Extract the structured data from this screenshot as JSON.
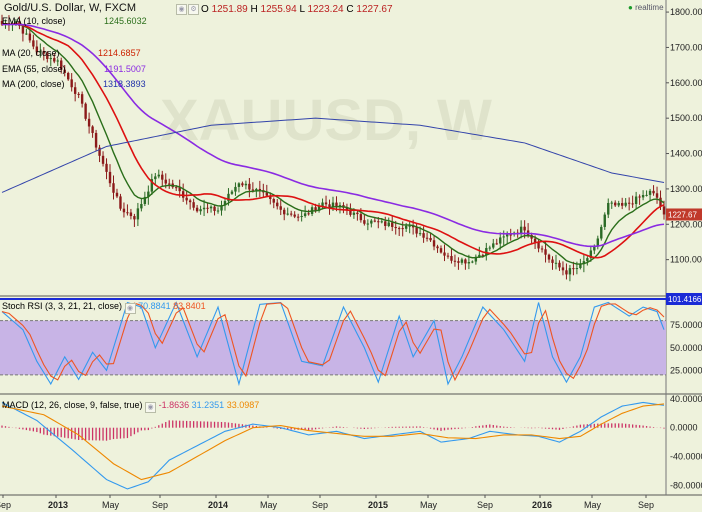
{
  "header": {
    "symbol": "Gold/U.S. Dollar, W, FXCM",
    "o_label": "O",
    "o_val": "1251.89",
    "h_label": "H",
    "h_val": "1255.94",
    "l_label": "L",
    "l_val": "1223.24",
    "c_label": "C",
    "c_val": "1227.67",
    "realtime": "realtime",
    "watermark": "XAUUSD, W"
  },
  "indicators": [
    {
      "label": "EMA (10, close)",
      "value": "1245.6032",
      "color": "#2a6e1a"
    },
    {
      "label": "MA (20, close)",
      "value": "1214.6857",
      "color": "#cc2200"
    },
    {
      "label": "EMA (55, close)",
      "value": "1191.5007",
      "color": "#8a2be2"
    },
    {
      "label": "MA (200, close)",
      "value": "1318.3893",
      "color": "#2233aa"
    }
  ],
  "stoch_header": {
    "label": "Stoch RSI (3, 3, 21, 21, close)",
    "k": "70.8841",
    "d": "83.8401"
  },
  "macd_header": {
    "label": "MACD (12, 26, close, 9, false, true)",
    "hist": "-1.8636",
    "macd": "31.2351",
    "signal": "33.0987"
  },
  "colors": {
    "bg": "#eef2dc",
    "up": "#2b6a26",
    "down": "#8b1a1a",
    "ema10": "#2a6e1a",
    "ma20": "#dd1111",
    "ema55": "#8a2be2",
    "ma200": "#3344aa",
    "stochBand": "#c8b4e6",
    "stochK": "#3399ee",
    "stochD": "#ee5522",
    "macd": "#3399ee",
    "signal": "#ee8800",
    "histo": "#cc3366"
  },
  "chart_data": [
    {
      "type": "candlestick",
      "title": "Gold/U.S. Dollar, W, FXCM",
      "ylim": [
        1000,
        1820
      ],
      "y_ticks": [
        "1800.00",
        "1700.00",
        "1600.00",
        "1500.00",
        "1400.00",
        "1300.00",
        "1200.00",
        "1100.00"
      ],
      "x_ticks": [
        "Sep",
        "2013",
        "May",
        "Sep",
        "2014",
        "May",
        "Sep",
        "2015",
        "May",
        "Sep",
        "2016",
        "May",
        "Sep"
      ],
      "price_anchors": [
        [
          0,
          1765
        ],
        [
          4,
          1775
        ],
        [
          10,
          1690
        ],
        [
          16,
          1660
        ],
        [
          22,
          1560
        ],
        [
          28,
          1395
        ],
        [
          34,
          1245
        ],
        [
          38,
          1220
        ],
        [
          44,
          1340
        ],
        [
          50,
          1300
        ],
        [
          56,
          1245
        ],
        [
          62,
          1240
        ],
        [
          68,
          1320
        ],
        [
          74,
          1290
        ],
        [
          80,
          1240
        ],
        [
          86,
          1220
        ],
        [
          92,
          1260
        ],
        [
          98,
          1245
        ],
        [
          104,
          1210
        ],
        [
          110,
          1200
        ],
        [
          116,
          1195
        ],
        [
          122,
          1165
        ],
        [
          128,
          1105
        ],
        [
          134,
          1095
        ],
        [
          140,
          1135
        ],
        [
          146,
          1175
        ],
        [
          150,
          1190
        ],
        [
          154,
          1140
        ],
        [
          158,
          1090
        ],
        [
          162,
          1065
        ],
        [
          166,
          1080
        ],
        [
          170,
          1130
        ],
        [
          174,
          1255
        ],
        [
          178,
          1250
        ],
        [
          182,
          1270
        ],
        [
          186,
          1290
        ],
        [
          188,
          1275
        ],
        [
          190,
          1228
        ]
      ],
      "last_price_label": "1227.67",
      "series": [
        {
          "name": "EMA (10, close)",
          "last": 1245.6032
        },
        {
          "name": "MA (20, close)",
          "last": 1214.6857
        },
        {
          "name": "EMA (55, close)",
          "last": 1191.5007
        },
        {
          "name": "MA (200, close)",
          "last": 1318.3893
        }
      ]
    },
    {
      "type": "line",
      "title": "Stoch RSI (3, 3, 21, 21, close)",
      "ylim": [
        0,
        105
      ],
      "y_ticks": [
        "75.0000",
        "50.0000",
        "25.0000"
      ],
      "band": [
        20,
        80
      ],
      "highlight_label": "101.4166",
      "k_anchors": [
        [
          0,
          90
        ],
        [
          6,
          70
        ],
        [
          10,
          35
        ],
        [
          14,
          10
        ],
        [
          18,
          40
        ],
        [
          22,
          15
        ],
        [
          26,
          45
        ],
        [
          30,
          25
        ],
        [
          36,
          100
        ],
        [
          40,
          95
        ],
        [
          44,
          50
        ],
        [
          50,
          100
        ],
        [
          56,
          40
        ],
        [
          62,
          95
        ],
        [
          68,
          10
        ],
        [
          74,
          98
        ],
        [
          80,
          100
        ],
        [
          86,
          35
        ],
        [
          92,
          30
        ],
        [
          98,
          95
        ],
        [
          104,
          50
        ],
        [
          108,
          12
        ],
        [
          114,
          85
        ],
        [
          118,
          40
        ],
        [
          124,
          80
        ],
        [
          128,
          10
        ],
        [
          132,
          40
        ],
        [
          138,
          95
        ],
        [
          144,
          70
        ],
        [
          150,
          35
        ],
        [
          154,
          100
        ],
        [
          158,
          40
        ],
        [
          162,
          12
        ],
        [
          166,
          40
        ],
        [
          170,
          95
        ],
        [
          174,
          100
        ],
        [
          180,
          85
        ],
        [
          184,
          95
        ],
        [
          188,
          90
        ],
        [
          190,
          70
        ]
      ],
      "d_offset": 2
    },
    {
      "type": "line",
      "title": "MACD (12, 26, close, 9, false, true)",
      "ylim": [
        -92,
        44
      ],
      "y_ticks": [
        "40.0000",
        "0.0000",
        "-40.0000",
        "-80.0000"
      ],
      "macd_anchors": [
        [
          0,
          35
        ],
        [
          10,
          10
        ],
        [
          20,
          -30
        ],
        [
          30,
          -72
        ],
        [
          36,
          -85
        ],
        [
          42,
          -75
        ],
        [
          48,
          -45
        ],
        [
          56,
          -25
        ],
        [
          64,
          -5
        ],
        [
          72,
          5
        ],
        [
          80,
          0
        ],
        [
          88,
          -10
        ],
        [
          96,
          -5
        ],
        [
          104,
          -15
        ],
        [
          112,
          -10
        ],
        [
          120,
          -5
        ],
        [
          126,
          -20
        ],
        [
          134,
          -15
        ],
        [
          140,
          -5
        ],
        [
          148,
          -10
        ],
        [
          154,
          -12
        ],
        [
          160,
          -20
        ],
        [
          166,
          -5
        ],
        [
          172,
          15
        ],
        [
          178,
          30
        ],
        [
          184,
          35
        ],
        [
          190,
          31
        ]
      ],
      "signal_anchors": [
        [
          0,
          30
        ],
        [
          12,
          18
        ],
        [
          22,
          -10
        ],
        [
          32,
          -50
        ],
        [
          40,
          -72
        ],
        [
          48,
          -62
        ],
        [
          56,
          -40
        ],
        [
          64,
          -18
        ],
        [
          72,
          0
        ],
        [
          80,
          3
        ],
        [
          88,
          -4
        ],
        [
          96,
          -8
        ],
        [
          104,
          -12
        ],
        [
          112,
          -12
        ],
        [
          120,
          -8
        ],
        [
          128,
          -14
        ],
        [
          136,
          -15
        ],
        [
          144,
          -10
        ],
        [
          152,
          -10
        ],
        [
          160,
          -15
        ],
        [
          166,
          -12
        ],
        [
          172,
          5
        ],
        [
          178,
          20
        ],
        [
          184,
          30
        ],
        [
          190,
          33
        ]
      ]
    }
  ]
}
